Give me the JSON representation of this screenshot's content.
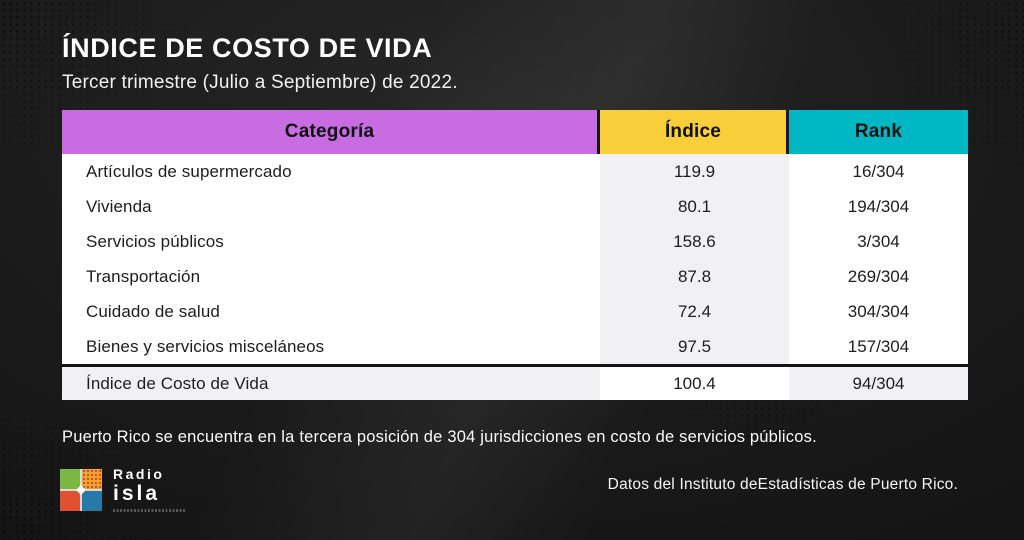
{
  "page": {
    "title": "ÍNDICE DE COSTO DE VIDA",
    "subtitle": "Tercer trimestre (Julio a Septiembre) de 2022.",
    "footnote": "Puerto Rico se encuentra en la tercera posición de 304 jurisdicciones en costo de servicios públicos.",
    "source": "Datos del Instituto deEstadísticas de Puerto Rico."
  },
  "table": {
    "columns": [
      {
        "label": "Categoría",
        "color": "#c86ce1"
      },
      {
        "label": "Índice",
        "color": "#f8ce3b"
      },
      {
        "label": "Rank",
        "color": "#00b7c3"
      }
    ],
    "rows": [
      {
        "categoria": "Artículos de supermercado",
        "indice": "119.9",
        "rank": "16/304"
      },
      {
        "categoria": "Vivienda",
        "indice": "80.1",
        "rank": "194/304"
      },
      {
        "categoria": "Servicios públicos",
        "indice": "158.6",
        "rank": "3/304"
      },
      {
        "categoria": "Transportación",
        "indice": "87.8",
        "rank": "269/304"
      },
      {
        "categoria": "Cuidado de salud",
        "indice": "72.4",
        "rank": "304/304"
      },
      {
        "categoria": "Bienes y servicios misceláneos",
        "indice": "97.5",
        "rank": "157/304"
      }
    ],
    "total_row": {
      "categoria": "Índice de Costo de Vida",
      "indice": "100.4",
      "rank": "94/304"
    }
  },
  "logo": {
    "line1": "Radio",
    "line2": "isla",
    "quad_colors": [
      "#7cb844",
      "#f2a72e",
      "#e1512f",
      "#2878a8"
    ]
  },
  "chart_data": {
    "type": "table",
    "title": "ÍNDICE DE COSTO DE VIDA",
    "subtitle": "Tercer trimestre (Julio a Septiembre) de 2022.",
    "columns": [
      "Categoría",
      "Índice",
      "Rank"
    ],
    "rows": [
      [
        "Artículos de supermercado",
        119.9,
        "16/304"
      ],
      [
        "Vivienda",
        80.1,
        "194/304"
      ],
      [
        "Servicios públicos",
        158.6,
        "3/304"
      ],
      [
        "Transportación",
        87.8,
        "269/304"
      ],
      [
        "Cuidado de salud",
        72.4,
        "304/304"
      ],
      [
        "Bienes y servicios misceláneos",
        97.5,
        "157/304"
      ],
      [
        "Índice de Costo de Vida",
        100.4,
        "94/304"
      ]
    ],
    "note": "Puerto Rico se encuentra en la tercera posición de 304 jurisdicciones en costo de servicios públicos.",
    "accent_colors": {
      "categoria": "#c86ce1",
      "indice": "#f8ce3b",
      "rank": "#00b7c3"
    }
  }
}
